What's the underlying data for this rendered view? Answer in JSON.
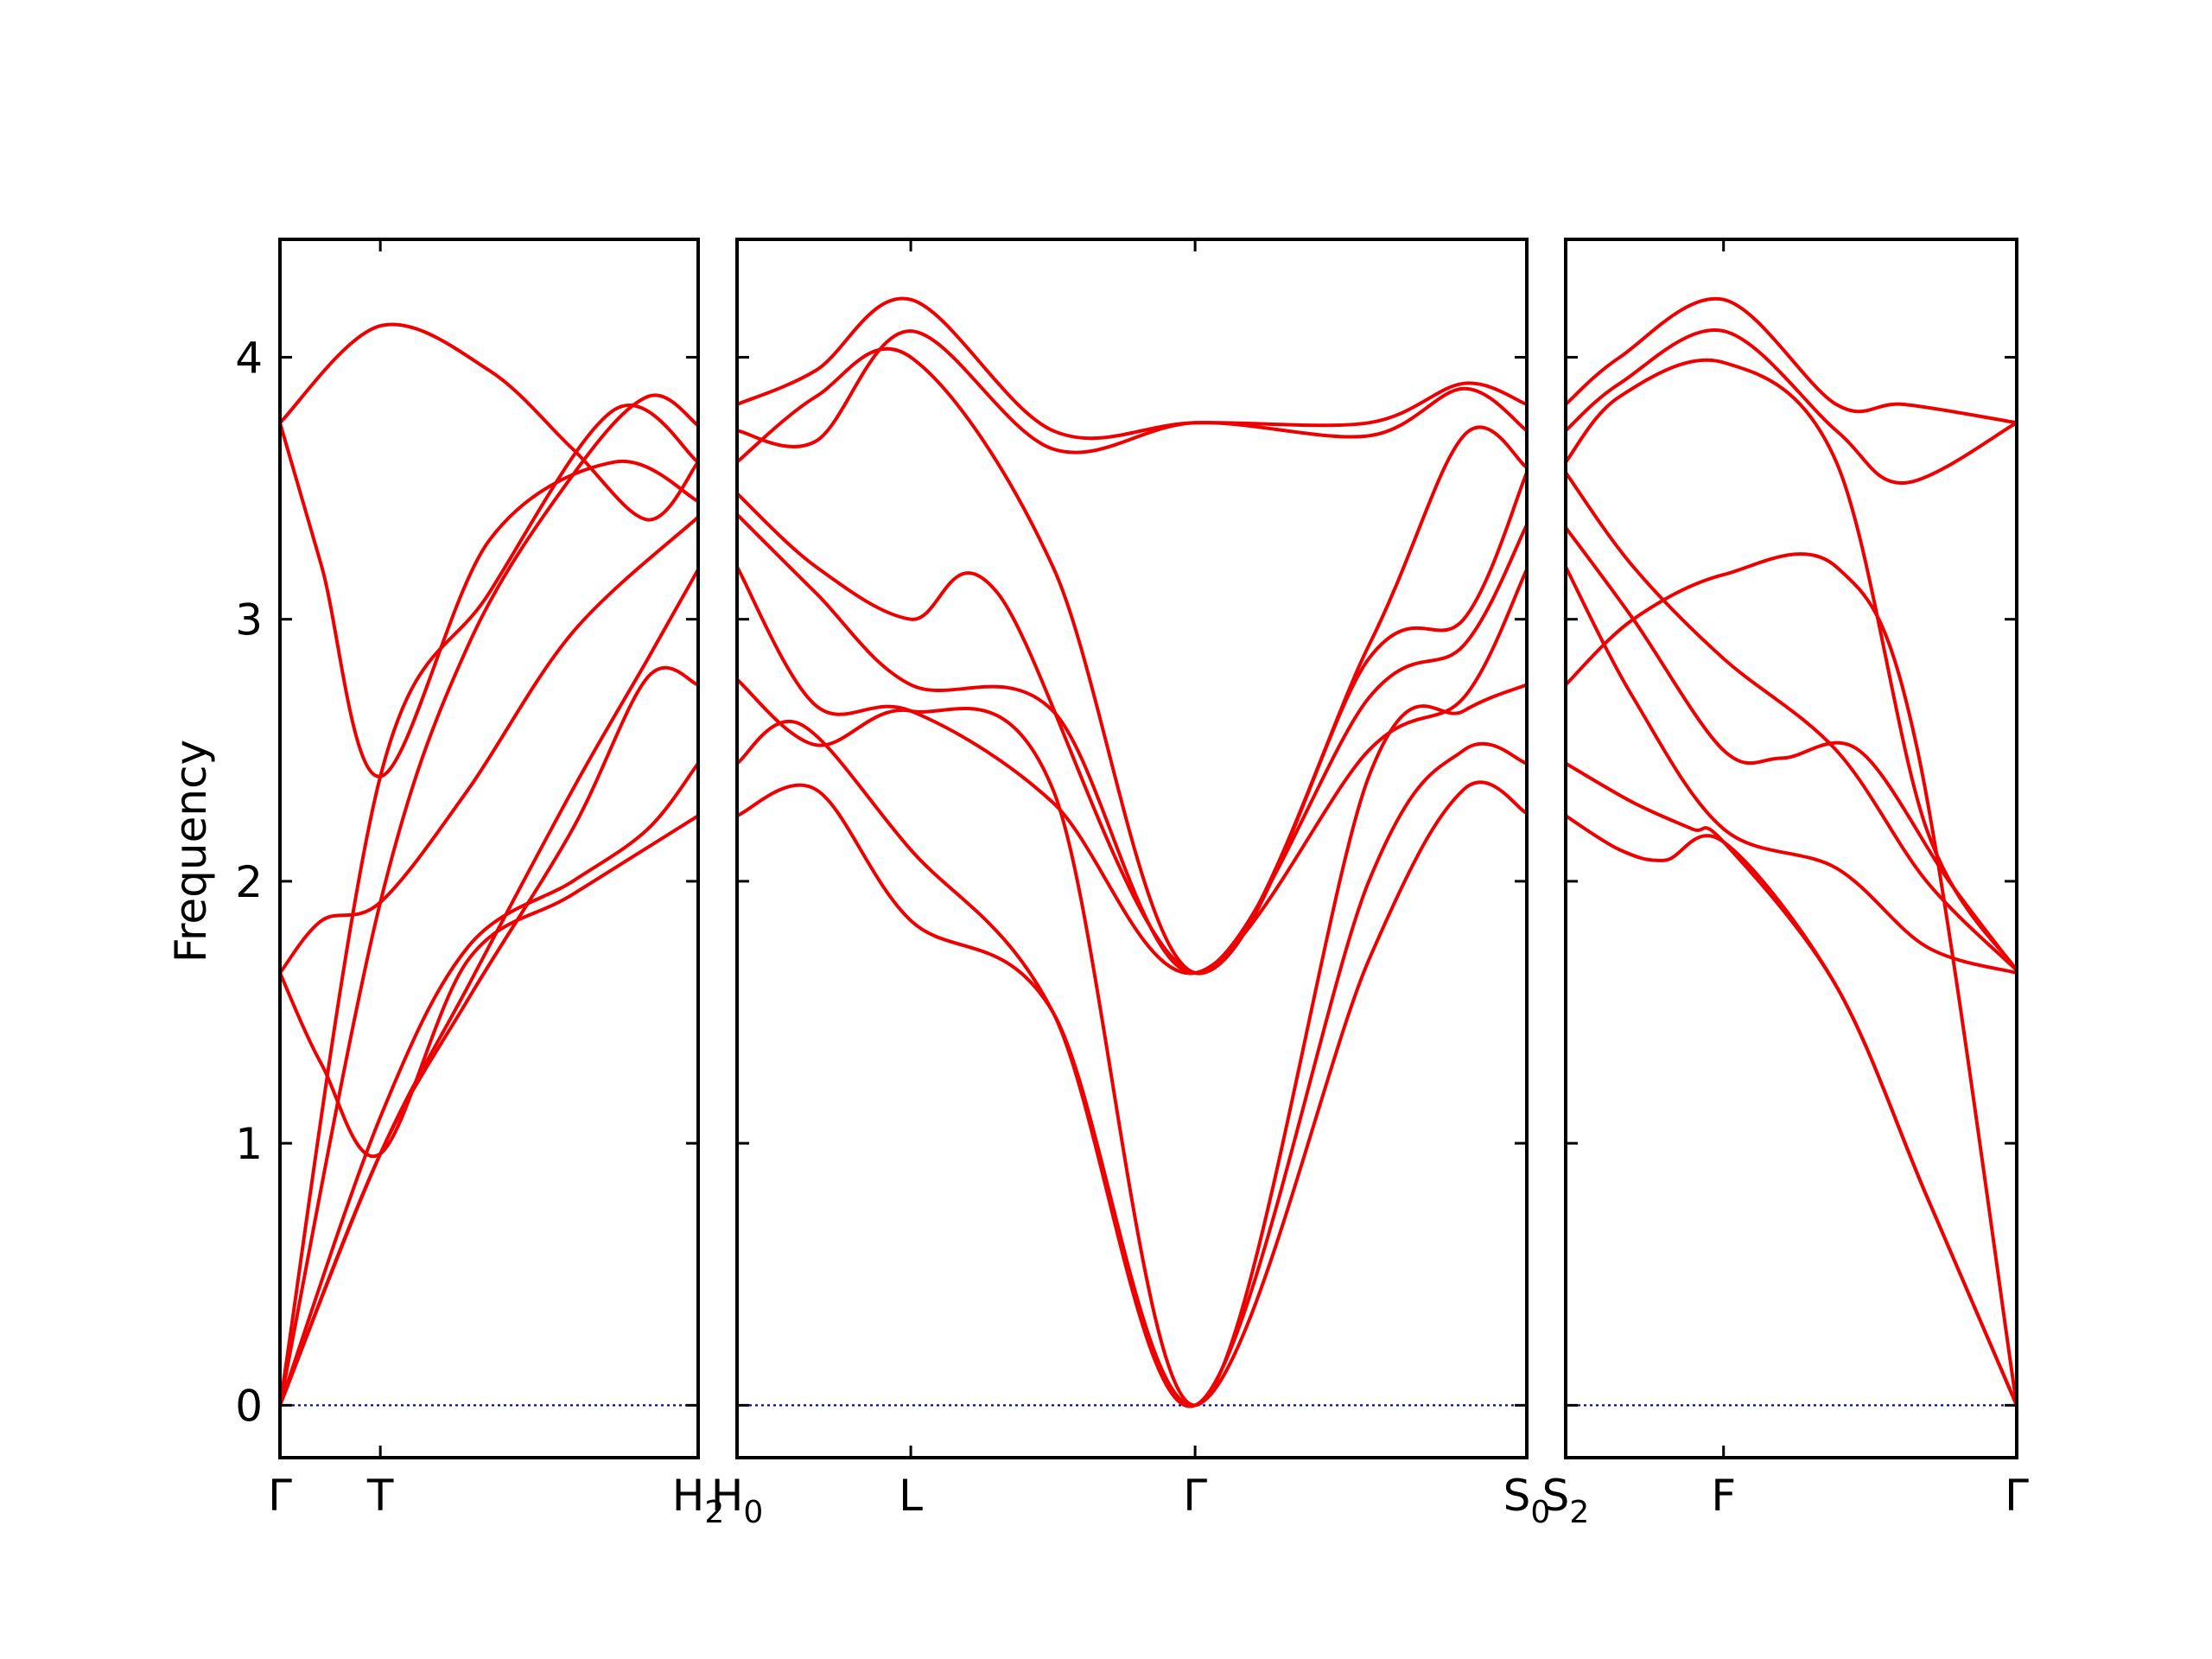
{
  "chart_data": {
    "type": "line",
    "ylabel": "Frequency",
    "ylim": [
      -0.2,
      4.45
    ],
    "yticks": [
      0,
      1,
      2,
      3,
      4
    ],
    "colors": {
      "bands": "#ee0000",
      "zero_line": "#0000cc"
    },
    "panels": [
      {
        "xlim": [
          0,
          1
        ],
        "xticks": [
          {
            "x": 0.0,
            "label": "Γ",
            "sub": ""
          },
          {
            "x": 0.24,
            "label": "T",
            "sub": ""
          },
          {
            "x": 1.0,
            "label": "H",
            "sub": "2"
          }
        ],
        "series": [
          {
            "x": [
              0,
              0.24,
              0.45,
              0.7,
              0.88,
              1.0
            ],
            "values": [
              0,
              0.96,
              1.55,
              2.2,
              2.78,
              2.75
            ]
          },
          {
            "x": [
              0,
              0.24,
              0.45,
              0.7,
              0.88,
              1.0
            ],
            "values": [
              0,
              0.96,
              1.6,
              2.35,
              2.85,
              3.19
            ]
          },
          {
            "x": [
              0,
              0.24,
              0.5,
              0.8,
              1.0
            ],
            "values": [
              0,
              2.4,
              3.1,
              3.8,
              3.6
            ]
          },
          {
            "x": [
              0,
              0.1,
              0.24,
              0.45,
              0.7,
              1.0
            ],
            "values": [
              1.65,
              1.3,
              0.96,
              1.7,
              1.95,
              2.25
            ]
          },
          {
            "x": [
              0,
              0.1,
              0.24,
              0.45,
              0.7,
              1.0
            ],
            "values": [
              1.65,
              1.85,
              1.92,
              2.35,
              2.95,
              3.39
            ]
          },
          {
            "x": [
              0,
              0.1,
              0.24,
              0.5,
              0.8,
              1.0
            ],
            "values": [
              3.75,
              3.2,
              2.4,
              3.3,
              3.6,
              3.45
            ]
          },
          {
            "x": [
              0,
              0.24,
              0.5,
              0.7,
              0.88,
              1.0
            ],
            "values": [
              3.75,
              4.12,
              3.95,
              3.65,
              3.38,
              3.6
            ]
          },
          {
            "x": [
              0,
              0.24,
              0.45,
              0.7,
              0.88,
              1.0
            ],
            "values": [
              0,
              1.1,
              1.75,
              2.0,
              2.2,
              2.45
            ]
          },
          {
            "x": [
              0,
              0.24,
              0.45,
              0.7,
              0.88,
              1.0
            ],
            "values": [
              0,
              1.92,
              2.9,
              3.55,
              3.85,
              3.74
            ]
          }
        ]
      },
      {
        "xlim": [
          0,
          1
        ],
        "xticks": [
          {
            "x": 0.0,
            "label": "H",
            "sub": "0"
          },
          {
            "x": 0.22,
            "label": "L",
            "sub": ""
          },
          {
            "x": 0.58,
            "label": "Γ",
            "sub": ""
          },
          {
            "x": 1.0,
            "label": "S",
            "sub": "0"
          }
        ],
        "series": [
          {
            "x": [
              0,
              0.1,
              0.22,
              0.4,
              0.58,
              0.8,
              0.92,
              1.0
            ],
            "values": [
              2.25,
              2.35,
              1.85,
              1.5,
              0.0,
              1.7,
              2.35,
              2.26
            ]
          },
          {
            "x": [
              0,
              0.08,
              0.22,
              0.4,
              0.58,
              0.8,
              0.92,
              1.0
            ],
            "values": [
              2.45,
              2.6,
              2.12,
              1.5,
              0.0,
              2.0,
              2.5,
              2.45
            ]
          },
          {
            "x": [
              0,
              0.1,
              0.22,
              0.4,
              0.58,
              0.8,
              0.92,
              1.0
            ],
            "values": [
              2.77,
              2.52,
              2.65,
              2.35,
              0.0,
              2.4,
              2.65,
              2.75
            ]
          },
          {
            "x": [
              0,
              0.1,
              0.22,
              0.4,
              0.58,
              0.8,
              0.92,
              1.0
            ],
            "values": [
              3.2,
              2.67,
              2.65,
              2.3,
              1.65,
              2.5,
              2.7,
              3.19
            ]
          },
          {
            "x": [
              0,
              0.1,
              0.22,
              0.4,
              0.58,
              0.8,
              0.92,
              1.0
            ],
            "values": [
              3.4,
              3.1,
              2.75,
              2.65,
              1.65,
              2.7,
              2.9,
              3.36
            ]
          },
          {
            "x": [
              0,
              0.1,
              0.22,
              0.33,
              0.58,
              0.8,
              0.92,
              1.0
            ],
            "values": [
              3.48,
              3.2,
              3.0,
              3.1,
              1.65,
              2.85,
              3.0,
              3.56
            ]
          },
          {
            "x": [
              0,
              0.1,
              0.22,
              0.4,
              0.58,
              0.8,
              0.92,
              1.0
            ],
            "values": [
              3.6,
              3.85,
              4.0,
              3.2,
              1.65,
              2.9,
              3.7,
              3.58
            ]
          },
          {
            "x": [
              0,
              0.1,
              0.22,
              0.4,
              0.58,
              0.8,
              0.92,
              1.0
            ],
            "values": [
              3.72,
              3.68,
              4.1,
              3.65,
              3.75,
              3.7,
              3.88,
              3.72
            ]
          },
          {
            "x": [
              0,
              0.1,
              0.22,
              0.4,
              0.58,
              0.8,
              0.92,
              1.0
            ],
            "values": [
              3.82,
              3.95,
              4.22,
              3.72,
              3.75,
              3.75,
              3.9,
              3.82
            ]
          }
        ]
      },
      {
        "xlim": [
          0,
          1
        ],
        "xticks": [
          {
            "x": 0.0,
            "label": "S",
            "sub": "2"
          },
          {
            "x": 0.35,
            "label": "F",
            "sub": ""
          },
          {
            "x": 1.0,
            "label": "Γ",
            "sub": ""
          }
        ],
        "series": [
          {
            "x": [
              0,
              0.12,
              0.22,
              0.35,
              0.6,
              0.8,
              1.0
            ],
            "values": [
              2.25,
              2.12,
              2.08,
              2.15,
              1.6,
              0.8,
              0.0
            ]
          },
          {
            "x": [
              0,
              0.15,
              0.28,
              0.35,
              0.6,
              0.8,
              1.0
            ],
            "values": [
              2.45,
              2.3,
              2.2,
              2.15,
              1.6,
              0.8,
              0.0
            ]
          },
          {
            "x": [
              0,
              0.15,
              0.35,
              0.6,
              0.78,
              1.0
            ],
            "values": [
              2.75,
              3.0,
              3.17,
              3.2,
              2.5,
              0.0
            ]
          },
          {
            "x": [
              0,
              0.15,
              0.35,
              0.6,
              0.8,
              1.0
            ],
            "values": [
              3.2,
              2.7,
              2.2,
              2.05,
              1.75,
              1.65
            ]
          },
          {
            "x": [
              0,
              0.15,
              0.35,
              0.48,
              0.65,
              0.85,
              1.0
            ],
            "values": [
              3.35,
              3.0,
              2.5,
              2.47,
              2.5,
              2.0,
              1.66
            ]
          },
          {
            "x": [
              0,
              0.15,
              0.35,
              0.6,
              0.8,
              1.0
            ],
            "values": [
              3.56,
              3.2,
              2.85,
              2.5,
              2.0,
              1.66
            ]
          },
          {
            "x": [
              0,
              0.12,
              0.35,
              0.6,
              0.8,
              1.0
            ],
            "values": [
              3.6,
              3.85,
              3.98,
              3.6,
              2.2,
              1.66
            ]
          },
          {
            "x": [
              0,
              0.12,
              0.35,
              0.6,
              0.75,
              1.0
            ],
            "values": [
              3.72,
              3.9,
              4.1,
              3.72,
              3.52,
              3.75
            ]
          },
          {
            "x": [
              0,
              0.12,
              0.35,
              0.6,
              0.75,
              1.0
            ],
            "values": [
              3.82,
              4.0,
              4.22,
              3.82,
              3.82,
              3.75
            ]
          }
        ]
      }
    ]
  }
}
